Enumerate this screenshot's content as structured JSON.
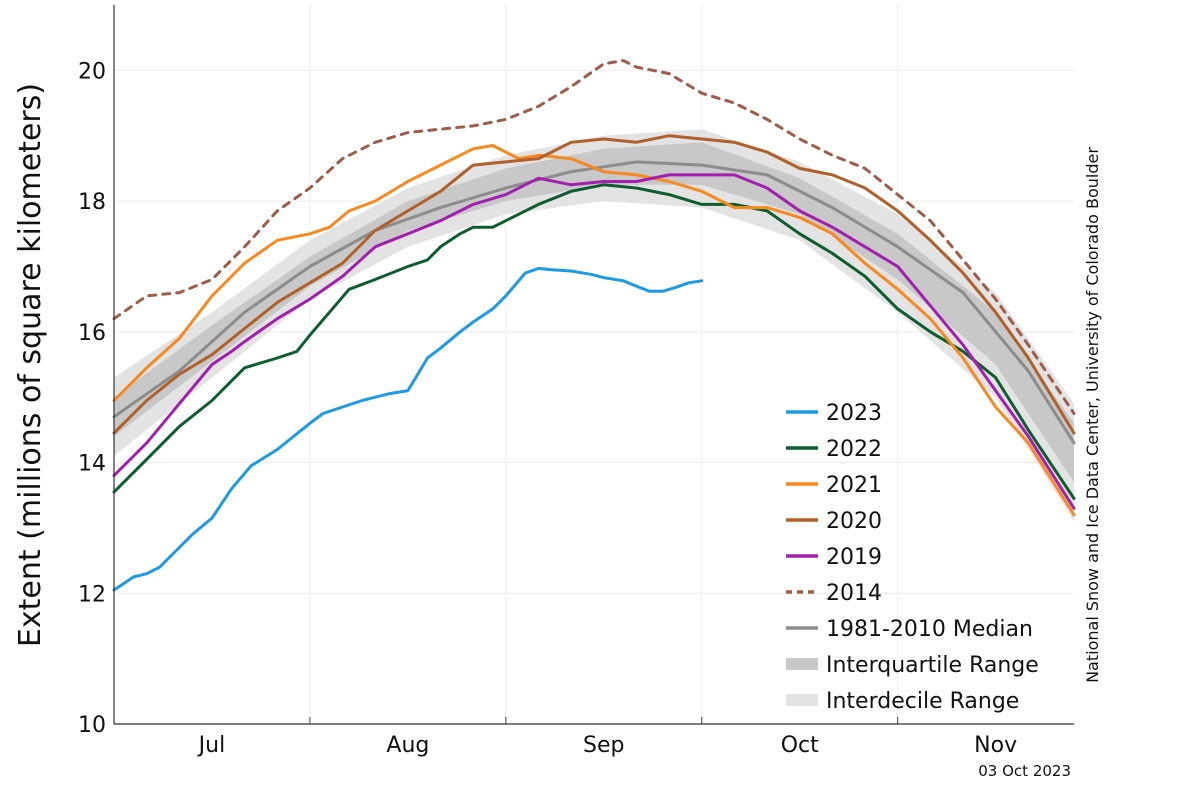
{
  "chart_data": {
    "type": "line",
    "title": "",
    "xlabel": "",
    "ylabel": "Extent (millions of square kilometers)",
    "xlim": [
      0,
      147
    ],
    "ylim": [
      10,
      21
    ],
    "yticks": [
      10,
      12,
      14,
      16,
      18,
      20
    ],
    "x_unit": "days since 15 Jun",
    "month_labels": [
      {
        "label": "Jul",
        "x": 15
      },
      {
        "label": "Aug",
        "x": 45
      },
      {
        "label": "Sep",
        "x": 75
      },
      {
        "label": "Oct",
        "x": 105
      },
      {
        "label": "Nov",
        "x": 135
      }
    ],
    "month_boundaries": [
      30,
      60,
      90,
      120
    ],
    "grid": true,
    "credit": "National Snow and Ice Data Center, University of Colorado Boulder",
    "date_stamp": "03 Oct 2023",
    "interdecile_range": {
      "name": "Interdecile Range",
      "color": "#e3e3e3",
      "x": [
        0,
        15,
        30,
        45,
        60,
        75,
        90,
        105,
        120,
        135,
        147
      ],
      "lower": [
        14.1,
        15.3,
        16.5,
        17.3,
        17.8,
        18.0,
        17.9,
        17.4,
        16.3,
        15.0,
        13.1
      ],
      "upper": [
        15.3,
        16.3,
        17.4,
        18.2,
        18.7,
        19.0,
        19.1,
        18.6,
        17.8,
        16.6,
        14.9
      ]
    },
    "interquartile_range": {
      "name": "Interquartile Range",
      "color": "#c8c8c8",
      "x": [
        0,
        15,
        30,
        45,
        60,
        75,
        90,
        105,
        120,
        135,
        147
      ],
      "lower": [
        14.4,
        15.55,
        16.7,
        17.55,
        18.0,
        18.25,
        18.25,
        17.8,
        16.8,
        15.5,
        13.7
      ],
      "upper": [
        15.0,
        16.1,
        17.15,
        18.0,
        18.5,
        18.8,
        18.9,
        18.35,
        17.5,
        16.3,
        14.6
      ]
    },
    "series": [
      {
        "name": "1981-2010 Median",
        "color": "#8c8c8c",
        "dash": false,
        "width": 3,
        "x": [
          0,
          10,
          20,
          30,
          40,
          50,
          60,
          70,
          80,
          90,
          100,
          110,
          120,
          130,
          140,
          147
        ],
        "values": [
          14.7,
          15.4,
          16.3,
          17.0,
          17.55,
          17.9,
          18.2,
          18.45,
          18.6,
          18.55,
          18.4,
          17.9,
          17.3,
          16.6,
          15.4,
          14.3
        ]
      },
      {
        "name": "2023",
        "color": "#1b9be3",
        "dash": false,
        "width": 3,
        "x": [
          0,
          3,
          5,
          7,
          10,
          12,
          15,
          18,
          21,
          25,
          30,
          32,
          35,
          38,
          40,
          42,
          45,
          48,
          50,
          53,
          55,
          58,
          60,
          63,
          65,
          67,
          70,
          73,
          75,
          78,
          80,
          82,
          84,
          86,
          88,
          90
        ],
        "values": [
          12.05,
          12.25,
          12.3,
          12.4,
          12.7,
          12.9,
          13.15,
          13.6,
          13.95,
          14.2,
          14.6,
          14.75,
          14.85,
          14.95,
          15.0,
          15.05,
          15.1,
          15.6,
          15.75,
          16.0,
          16.15,
          16.35,
          16.55,
          16.9,
          16.97,
          16.95,
          16.93,
          16.88,
          16.83,
          16.78,
          16.7,
          16.62,
          16.62,
          16.68,
          16.75,
          16.78
        ]
      },
      {
        "name": "2022",
        "color": "#0d5e2e",
        "dash": false,
        "width": 3,
        "x": [
          0,
          5,
          10,
          15,
          20,
          25,
          28,
          30,
          33,
          36,
          40,
          45,
          48,
          50,
          53,
          55,
          58,
          60,
          62,
          65,
          70,
          75,
          80,
          85,
          90,
          95,
          100,
          105,
          110,
          115,
          120,
          125,
          130,
          135,
          140,
          147
        ],
        "values": [
          13.55,
          14.05,
          14.55,
          14.95,
          15.45,
          15.6,
          15.7,
          15.95,
          16.3,
          16.65,
          16.8,
          17.0,
          17.1,
          17.3,
          17.5,
          17.6,
          17.6,
          17.7,
          17.8,
          17.95,
          18.15,
          18.25,
          18.2,
          18.1,
          17.95,
          17.95,
          17.85,
          17.5,
          17.2,
          16.85,
          16.35,
          16.0,
          15.7,
          15.3,
          14.5,
          13.45
        ]
      },
      {
        "name": "2021",
        "color": "#f7891e",
        "dash": false,
        "width": 3,
        "x": [
          0,
          5,
          10,
          15,
          20,
          25,
          30,
          33,
          36,
          40,
          45,
          50,
          55,
          58,
          60,
          62,
          65,
          70,
          75,
          80,
          85,
          90,
          95,
          100,
          105,
          110,
          115,
          120,
          125,
          130,
          135,
          140,
          147
        ],
        "values": [
          14.95,
          15.45,
          15.9,
          16.55,
          17.05,
          17.4,
          17.5,
          17.6,
          17.85,
          18.0,
          18.3,
          18.55,
          18.8,
          18.85,
          18.75,
          18.65,
          18.7,
          18.65,
          18.45,
          18.4,
          18.3,
          18.15,
          17.9,
          17.9,
          17.75,
          17.5,
          17.05,
          16.65,
          16.2,
          15.6,
          14.85,
          14.3,
          13.2
        ]
      },
      {
        "name": "2020",
        "color": "#b0612a",
        "dash": false,
        "width": 3,
        "x": [
          0,
          5,
          10,
          15,
          20,
          25,
          30,
          35,
          40,
          45,
          50,
          55,
          60,
          65,
          70,
          75,
          80,
          85,
          90,
          95,
          100,
          105,
          110,
          115,
          120,
          125,
          130,
          135,
          140,
          147
        ],
        "values": [
          14.45,
          14.95,
          15.35,
          15.65,
          16.05,
          16.45,
          16.75,
          17.05,
          17.55,
          17.85,
          18.15,
          18.55,
          18.6,
          18.65,
          18.9,
          18.95,
          18.9,
          19.0,
          18.95,
          18.9,
          18.75,
          18.5,
          18.4,
          18.2,
          17.85,
          17.4,
          16.9,
          16.3,
          15.6,
          14.45
        ]
      },
      {
        "name": "2019",
        "color": "#a31faf",
        "dash": false,
        "width": 3,
        "x": [
          0,
          5,
          10,
          15,
          18,
          20,
          25,
          30,
          35,
          40,
          45,
          50,
          55,
          60,
          65,
          70,
          75,
          80,
          85,
          90,
          95,
          100,
          105,
          110,
          115,
          120,
          125,
          130,
          135,
          140,
          147
        ],
        "values": [
          13.8,
          14.3,
          14.9,
          15.5,
          15.7,
          15.85,
          16.2,
          16.5,
          16.85,
          17.3,
          17.5,
          17.7,
          17.95,
          18.1,
          18.35,
          18.25,
          18.3,
          18.3,
          18.4,
          18.4,
          18.4,
          18.2,
          17.85,
          17.6,
          17.3,
          17.0,
          16.4,
          15.8,
          15.1,
          14.4,
          13.3
        ]
      },
      {
        "name": "2014",
        "color": "#a05c48",
        "dash": true,
        "width": 3,
        "x": [
          0,
          5,
          10,
          15,
          20,
          25,
          30,
          35,
          40,
          45,
          50,
          55,
          60,
          65,
          70,
          75,
          78,
          80,
          85,
          90,
          95,
          100,
          105,
          110,
          115,
          120,
          125,
          130,
          135,
          140,
          147
        ],
        "values": [
          16.2,
          16.55,
          16.6,
          16.8,
          17.3,
          17.85,
          18.2,
          18.65,
          18.9,
          19.05,
          19.1,
          19.15,
          19.25,
          19.45,
          19.75,
          20.1,
          20.15,
          20.05,
          19.95,
          19.65,
          19.5,
          19.25,
          18.95,
          18.7,
          18.5,
          18.1,
          17.7,
          17.1,
          16.5,
          15.8,
          14.75
        ]
      }
    ],
    "legend": {
      "placement": "bottom-right",
      "entries": [
        {
          "label": "2023",
          "kind": "line",
          "color": "#1b9be3"
        },
        {
          "label": "2022",
          "kind": "line",
          "color": "#0d5e2e"
        },
        {
          "label": "2021",
          "kind": "line",
          "color": "#f7891e"
        },
        {
          "label": "2020",
          "kind": "line",
          "color": "#b0612a"
        },
        {
          "label": "2019",
          "kind": "line",
          "color": "#a31faf"
        },
        {
          "label": "2014",
          "kind": "dashed",
          "color": "#a05c48"
        },
        {
          "label": "1981-2010 Median",
          "kind": "line",
          "color": "#8c8c8c"
        },
        {
          "label": "Interquartile Range",
          "kind": "band",
          "color": "#c8c8c8"
        },
        {
          "label": "Interdecile Range",
          "kind": "band",
          "color": "#e3e3e3"
        }
      ]
    }
  }
}
